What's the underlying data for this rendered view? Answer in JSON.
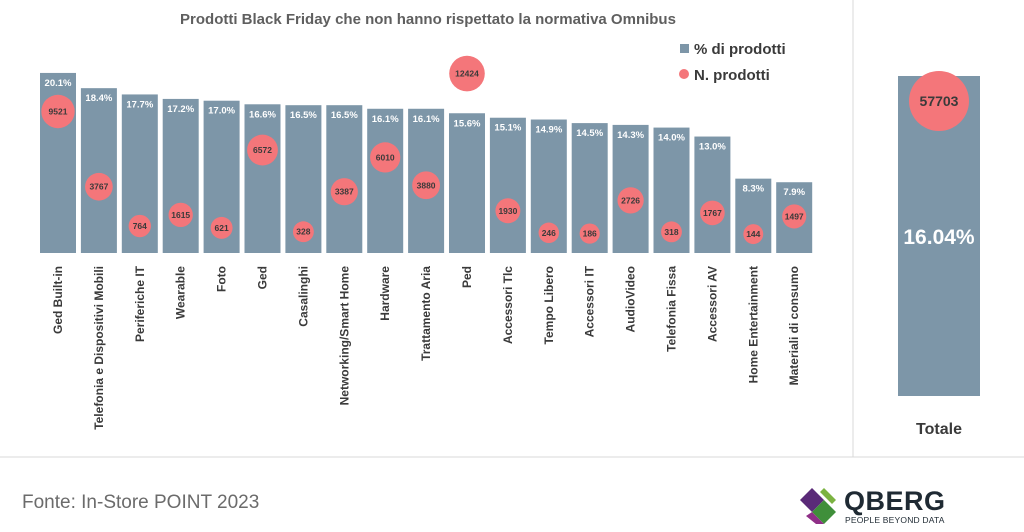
{
  "chart_data": [
    {
      "type": "bar",
      "title": "Prodotti Black Friday che non hanno rispettato la normativa Omnibus",
      "categories": [
        "Ged Built-in",
        "Telefonia e Dispositivi Mobili",
        "Periferiche IT",
        "Wearable",
        "Foto",
        "Ged",
        "Casalinghi",
        "Networking/Smart Home",
        "Hardware",
        "Trattamento Aria",
        "Ped",
        "Accessori Tlc",
        "Tempo Libero",
        "Accessori IT",
        "AudioVideo",
        "Telefonia Fissa",
        "Accessori AV",
        "Home Entertainment",
        "Materiali di consumo"
      ],
      "series": [
        {
          "name": "% di prodotti",
          "kind": "bar",
          "values": [
            20.1,
            18.4,
            17.7,
            17.2,
            17.0,
            16.6,
            16.5,
            16.5,
            16.1,
            16.1,
            15.6,
            15.1,
            14.9,
            14.5,
            14.3,
            14.0,
            13.0,
            8.3,
            7.9
          ],
          "labels": [
            "20.1%",
            "18.4%",
            "17.7%",
            "17.2%",
            "17.0%",
            "16.6%",
            "16.5%",
            "16.5%",
            "16.1%",
            "16.1%",
            "15.6%",
            "15.1%",
            "14.9%",
            "14.5%",
            "14.3%",
            "14.0%",
            "13.0%",
            "8.3%",
            "7.9%"
          ]
        },
        {
          "name": "N. prodotti",
          "kind": "bubble",
          "values": [
            9521,
            3767,
            764,
            1615,
            621,
            6572,
            328,
            3387,
            6010,
            3880,
            12424,
            1930,
            246,
            186,
            2726,
            318,
            1767,
            144,
            1497
          ],
          "labels": [
            "9521",
            "3767",
            "764",
            "1615",
            "621",
            "6572",
            "328",
            "3387",
            "6010",
            "3880",
            "12424",
            "1930",
            "246",
            "186",
            "2726",
            "318",
            "1767",
            "144",
            "1497"
          ]
        }
      ],
      "ylim": [
        0,
        24
      ],
      "bubble_range": [
        0,
        13000
      ],
      "legend": [
        "% di prodotti",
        "N. prodotti"
      ],
      "legend_position": "top-right"
    },
    {
      "type": "bar",
      "categories": [
        "Totale"
      ],
      "series": [
        {
          "name": "% di prodotti",
          "kind": "bar",
          "values": [
            16.04
          ],
          "labels": [
            "16.04%"
          ]
        },
        {
          "name": "N. prodotti",
          "kind": "bubble",
          "values": [
            57703
          ],
          "labels": [
            "57703"
          ]
        }
      ]
    }
  ],
  "colors": {
    "bar": "#7d96a8",
    "bubble": "#f4767a",
    "bubble_text": "#3a3a3a",
    "title": "#5f5f5f",
    "axis_text": "#3a3a3a",
    "panel_border": "#d9d9d9"
  },
  "footer": {
    "source": "Fonte: In-Store POINT 2023"
  },
  "logo": {
    "name": "QBERG",
    "tagline": "PEOPLE BEYOND DATA"
  }
}
